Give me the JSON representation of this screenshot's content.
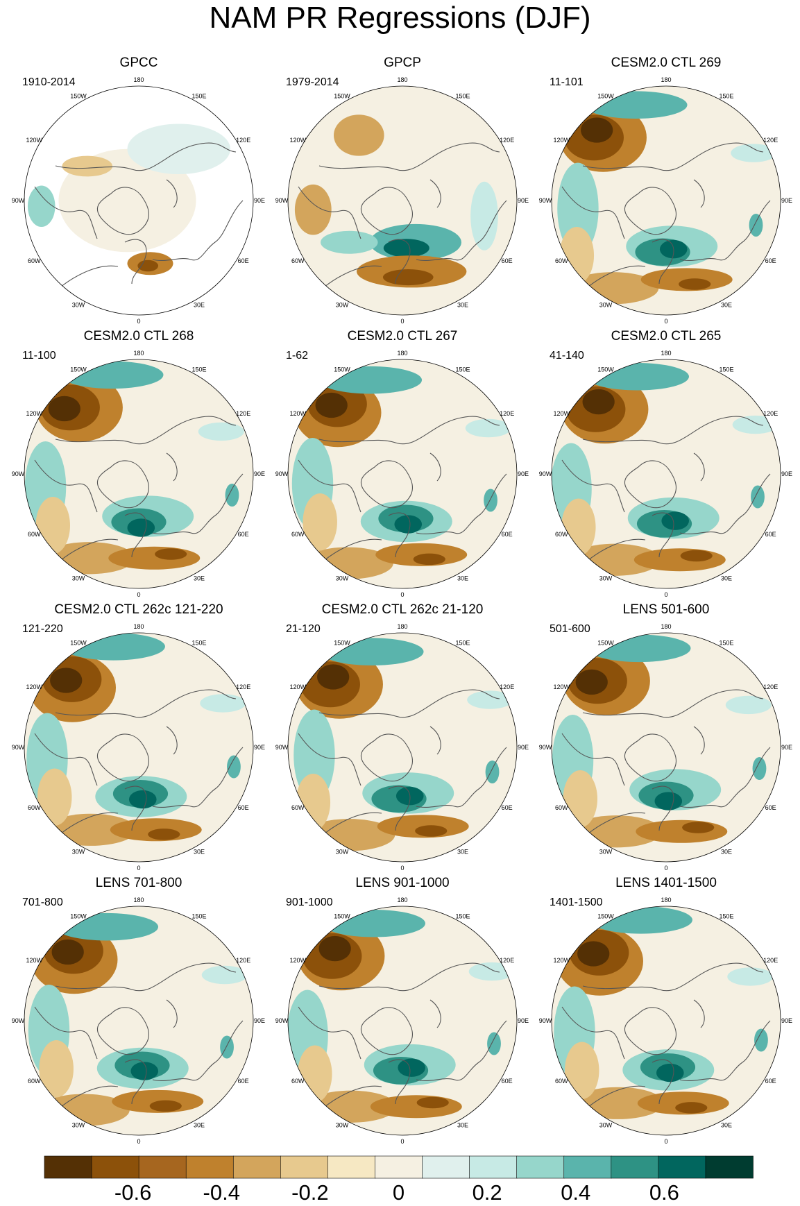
{
  "title": "NAM PR Regressions (DJF)",
  "map_axis_labels": [
    "180",
    "150E",
    "120E",
    "90E",
    "60E",
    "30E",
    "0",
    "30W",
    "60W",
    "90W",
    "120W",
    "150W"
  ],
  "panels": [
    {
      "title": "GPCC",
      "period": "1910-2014",
      "kind": "obs_gpcc"
    },
    {
      "title": "GPCP",
      "period": "1979-2014",
      "kind": "obs_gpcp"
    },
    {
      "title": "CESM2.0 CTL 269",
      "period": "11-101",
      "kind": "model"
    },
    {
      "title": "CESM2.0 CTL 268",
      "period": "11-100",
      "kind": "model"
    },
    {
      "title": "CESM2.0 CTL 267",
      "period": "1-62",
      "kind": "model"
    },
    {
      "title": "CESM2.0 CTL 265",
      "period": "41-140",
      "kind": "model"
    },
    {
      "title": "CESM2.0 CTL 262c 121-220",
      "period": "121-220",
      "kind": "model"
    },
    {
      "title": "CESM2.0 CTL 262c 21-120",
      "period": "21-120",
      "kind": "model"
    },
    {
      "title": "LENS 501-600",
      "period": "501-600",
      "kind": "model"
    },
    {
      "title": "LENS 701-800",
      "period": "701-800",
      "kind": "model"
    },
    {
      "title": "LENS 901-1000",
      "period": "901-1000",
      "kind": "model"
    },
    {
      "title": "LENS 1401-1500",
      "period": "1401-1500",
      "kind": "model"
    }
  ],
  "colorbar": {
    "colors": [
      "#543005",
      "#8c510a",
      "#a6661f",
      "#bf812d",
      "#d3a55c",
      "#e7c98e",
      "#f6e8c3",
      "#f5f0e2",
      "#e0f0ed",
      "#c7eae5",
      "#96d6cb",
      "#5ab4ac",
      "#2e9284",
      "#01665e",
      "#003c30"
    ],
    "tick_labels": [
      "-0.6",
      "-0.4",
      "-0.2",
      "0",
      "0.2",
      "0.4",
      "0.6"
    ],
    "tick_values": [
      -0.6,
      -0.4,
      -0.2,
      0,
      0.2,
      0.4,
      0.6
    ],
    "range": [
      -0.8,
      0.8
    ]
  }
}
